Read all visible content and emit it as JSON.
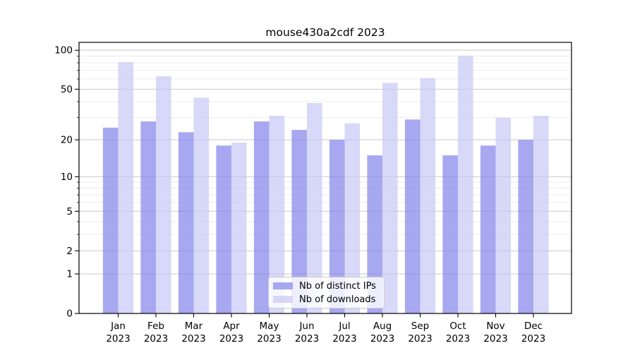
{
  "title": "mouse430a2cdf 2023",
  "colors": {
    "bar_distinct_ips": "rgba(131,131,235,0.7)",
    "bar_downloads": "rgba(199,199,245,0.7)",
    "grid_major": "#c9c9c9",
    "grid_minor": "#ededed",
    "axis": "#000000",
    "legend_border": "#cccccc"
  },
  "chart_data": {
    "type": "bar",
    "title": "mouse430a2cdf 2023",
    "scale": "log(1+y)",
    "grid": "on",
    "legend_position": "bottom-center",
    "categories": [
      "Jan 2023",
      "Feb 2023",
      "Mar 2023",
      "Apr 2023",
      "May 2023",
      "Jun 2023",
      "Jul 2023",
      "Aug 2023",
      "Sep 2023",
      "Oct 2023",
      "Nov 2023",
      "Dec 2023"
    ],
    "series": [
      {
        "name": "Nb of distinct IPs",
        "color": "rgba(131,131,235,0.7)",
        "values": [
          25,
          28,
          23,
          18,
          28,
          24,
          20,
          15,
          29,
          15,
          18,
          20
        ]
      },
      {
        "name": "Nb of downloads",
        "color": "rgba(199,199,245,0.7)",
        "values": [
          81,
          63,
          43,
          19,
          31,
          39,
          27,
          56,
          61,
          91,
          30,
          31
        ]
      }
    ],
    "y_axis": {
      "major_ticks": [
        100,
        50,
        20,
        10,
        5,
        2,
        1,
        0
      ],
      "minor_ticks": [
        90,
        80,
        70,
        60,
        40,
        30,
        9,
        8,
        7,
        6,
        4,
        3
      ],
      "ylim": [
        0,
        115
      ]
    },
    "x_axis": {
      "tick_labels_line2": "2023"
    }
  }
}
